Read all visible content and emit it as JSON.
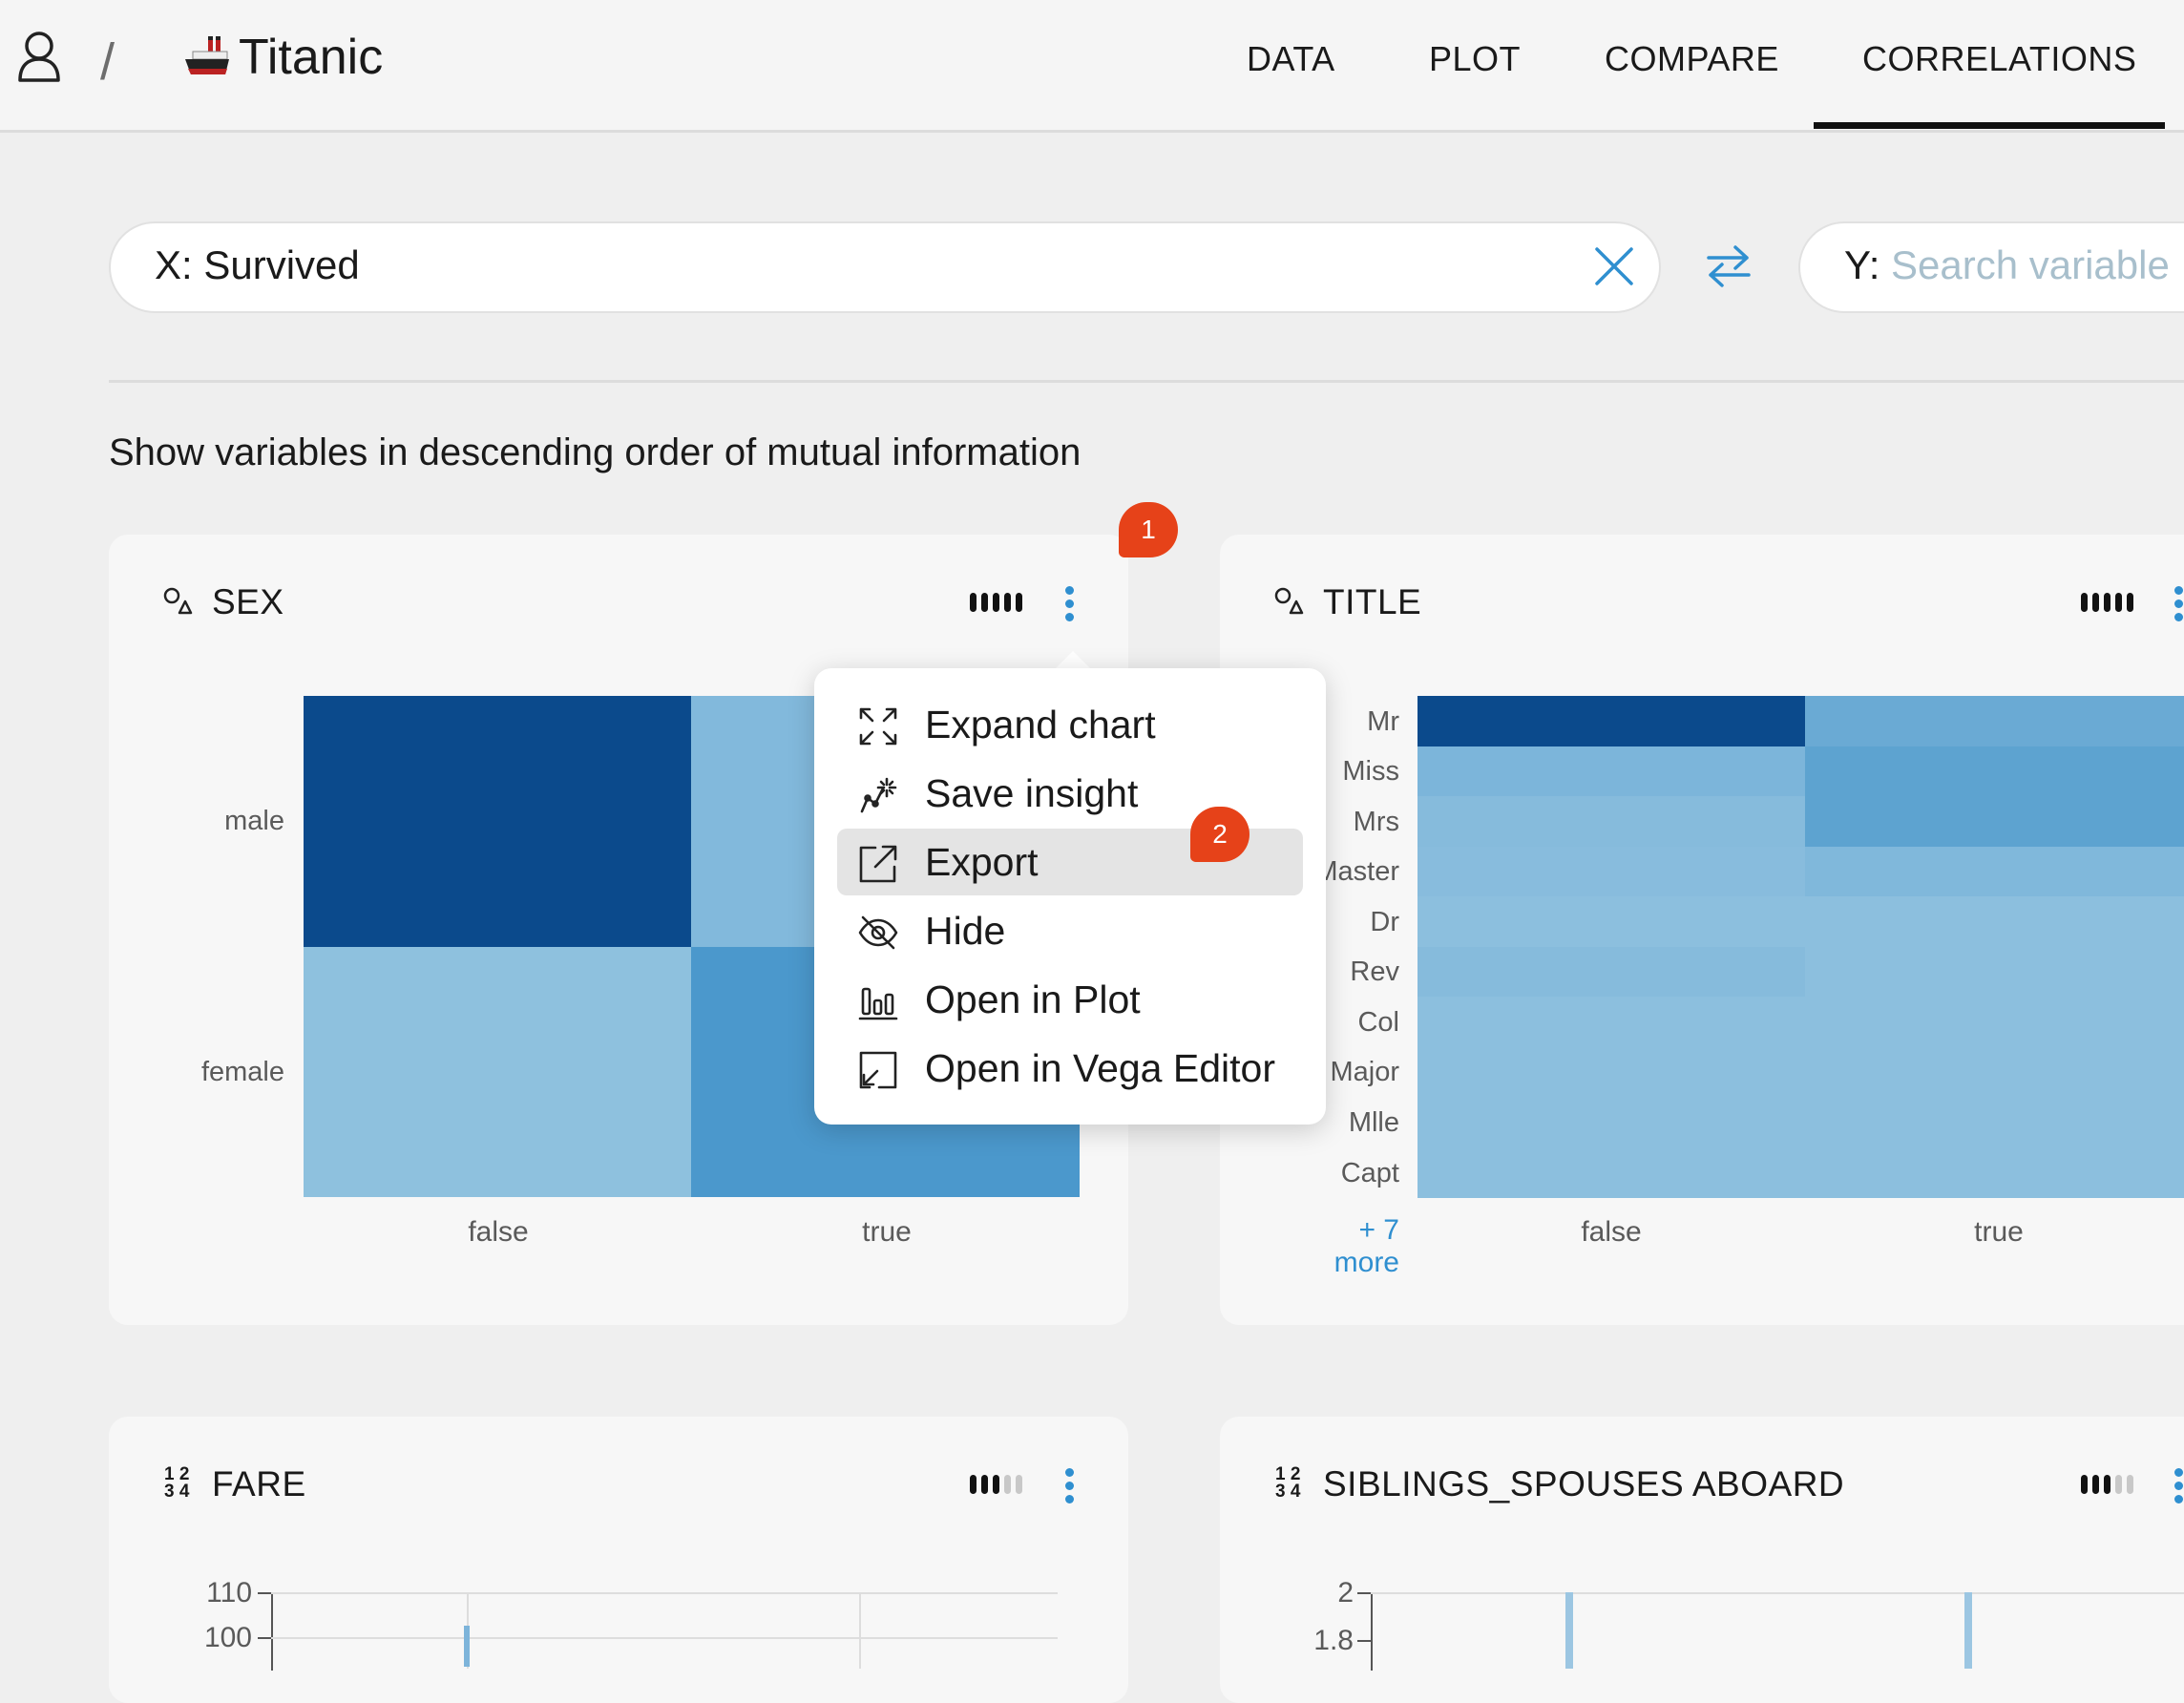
{
  "app": {
    "title": "Titanic",
    "breadcrumb_separator": "/"
  },
  "nav": {
    "tabs": [
      {
        "label": "DATA"
      },
      {
        "label": "PLOT"
      },
      {
        "label": "COMPARE"
      },
      {
        "label": "CORRELATIONS",
        "active": true
      }
    ]
  },
  "search": {
    "x_value": "X: Survived",
    "y_prefix": "Y:",
    "y_placeholder": "Search variable"
  },
  "order_text": "Show variables in descending order of mutual information",
  "cards": [
    {
      "title": "SEX",
      "icon": "categorical-icon",
      "mi_level": 5,
      "mi_max": 5,
      "heatmap": {
        "rows": [
          "male",
          "female"
        ],
        "cols": [
          "false",
          "true"
        ],
        "colors": [
          [
            "#0b4a8c",
            "#82b9dc"
          ],
          [
            "#8ec1de",
            "#4b98cc"
          ]
        ]
      }
    },
    {
      "title": "TITLE",
      "icon": "categorical-icon",
      "mi_level": 5,
      "mi_max": 5,
      "heatmap": {
        "rows": [
          "Mr",
          "Miss",
          "Mrs",
          "Master",
          "Dr",
          "Rev",
          "Col",
          "Major",
          "Mlle",
          "Capt"
        ],
        "cols": [
          "false",
          "true"
        ],
        "more_label": "+ 7 more",
        "colors": [
          [
            "#0b4a8c",
            "#6aaad4"
          ],
          [
            "#7cb5da",
            "#5da3d0"
          ],
          [
            "#86bbdc",
            "#5da3d0"
          ],
          [
            "#88bcdd",
            "#80b8db"
          ],
          [
            "#8cbfde",
            "#8cbfde"
          ],
          [
            "#86bbdc",
            "#8cbfde"
          ],
          [
            "#8cbfde",
            "#8cbfde"
          ],
          [
            "#8cbfde",
            "#8cbfde"
          ],
          [
            "#8cbfde",
            "#8cbfde"
          ],
          [
            "#8cbfde",
            "#8cbfde"
          ]
        ]
      }
    },
    {
      "title": "FARE",
      "icon": "numeric-icon",
      "mi_level": 3,
      "mi_max": 5,
      "y_ticks": [
        "110",
        "100"
      ]
    },
    {
      "title": "SIBLINGS_SPOUSES ABOARD",
      "icon": "numeric-icon",
      "mi_level": 3,
      "mi_max": 5,
      "y_ticks": [
        "2",
        "1.8"
      ]
    }
  ],
  "menu": {
    "items": [
      {
        "label": "Expand chart",
        "icon": "expand-icon"
      },
      {
        "label": "Save insight",
        "icon": "sparkle-icon"
      },
      {
        "label": "Export",
        "icon": "export-icon",
        "highlighted": true
      },
      {
        "label": "Hide",
        "icon": "eye-off-icon"
      },
      {
        "label": "Open in Plot",
        "icon": "bar-chart-icon"
      },
      {
        "label": "Open in Vega Editor",
        "icon": "open-external-icon"
      }
    ]
  },
  "badges": [
    "1",
    "2"
  ],
  "colors": {
    "accent": "#2f8fd0",
    "badge": "#e64219",
    "heat_dark": "#0b4a8c",
    "heat_light": "#8ec1de"
  }
}
